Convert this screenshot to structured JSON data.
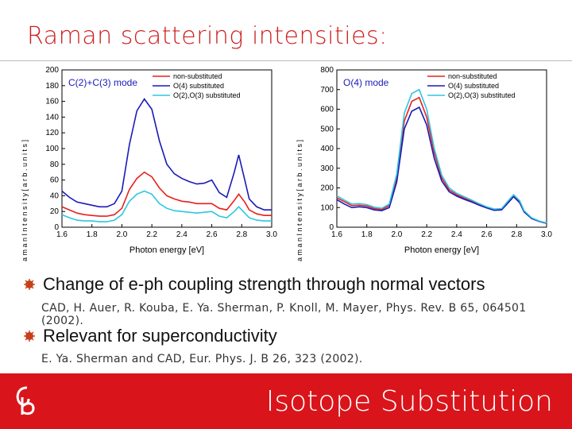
{
  "slide": {
    "title": "Raman scattering intensities:",
    "bullets": [
      {
        "text": "Change of e-ph coupling strength through normal vectors",
        "ref": "CAD, H. Auer, R. Kouba, E. Ya. Sherman, P. Knoll, M. Mayer, Phys. Rev. B 65, 064501 (2002)."
      },
      {
        "text": "Relevant for superconductivity",
        "ref": "E. Ya. Sherman and CAD, Eur. Phys. J. B 26, 323 (2002)."
      }
    ],
    "footer_title": "Isotope Substitution",
    "colors": {
      "accent": "#d9151b",
      "title": "#cc1f1f",
      "bullet": "#c8401a"
    }
  },
  "chart_data": [
    {
      "type": "line",
      "annotation": "C(2)+C(3) mode",
      "xlabel": "Photon energy [eV]",
      "ylabel": "R a m a n   I n t e n s i t y   [ a r b .   u n i t s ]",
      "xlim": [
        1.6,
        3.0
      ],
      "ylim": [
        0,
        200
      ],
      "xticks": [
        "1.6",
        "1.8",
        "2.0",
        "2.2",
        "2.4",
        "2.6",
        "2.8",
        "3.0"
      ],
      "yticks": [
        "0",
        "20",
        "40",
        "60",
        "80",
        "100",
        "120",
        "140",
        "160",
        "180",
        "200"
      ],
      "legend": "top-right",
      "series": [
        {
          "name": "non-substituted",
          "color": "#e8201c",
          "x": [
            1.6,
            1.65,
            1.7,
            1.75,
            1.8,
            1.85,
            1.9,
            1.95,
            2.0,
            2.05,
            2.1,
            2.15,
            2.2,
            2.25,
            2.3,
            2.35,
            2.4,
            2.45,
            2.5,
            2.55,
            2.6,
            2.65,
            2.7,
            2.75,
            2.78,
            2.82,
            2.85,
            2.9,
            2.95,
            3.0
          ],
          "values": [
            26,
            22,
            18,
            16,
            15,
            14,
            14,
            16,
            24,
            48,
            62,
            70,
            64,
            50,
            40,
            36,
            33,
            32,
            30,
            30,
            30,
            24,
            22,
            34,
            42,
            32,
            22,
            17,
            15,
            15
          ]
        },
        {
          "name": "O(4) substituted",
          "color": "#1a1ab8",
          "x": [
            1.6,
            1.65,
            1.7,
            1.75,
            1.8,
            1.85,
            1.9,
            1.95,
            2.0,
            2.05,
            2.1,
            2.15,
            2.2,
            2.25,
            2.3,
            2.35,
            2.4,
            2.45,
            2.5,
            2.55,
            2.6,
            2.65,
            2.7,
            2.75,
            2.78,
            2.82,
            2.85,
            2.9,
            2.95,
            3.0
          ],
          "values": [
            46,
            38,
            32,
            30,
            28,
            26,
            26,
            30,
            46,
            105,
            148,
            163,
            150,
            110,
            80,
            68,
            62,
            58,
            55,
            56,
            60,
            44,
            38,
            70,
            92,
            60,
            36,
            26,
            22,
            22
          ]
        },
        {
          "name": "O(2),O(3) substituted",
          "color": "#2ec6e0",
          "x": [
            1.6,
            1.65,
            1.7,
            1.75,
            1.8,
            1.85,
            1.9,
            1.95,
            2.0,
            2.05,
            2.1,
            2.15,
            2.2,
            2.25,
            2.3,
            2.35,
            2.4,
            2.45,
            2.5,
            2.55,
            2.6,
            2.65,
            2.7,
            2.75,
            2.78,
            2.82,
            2.85,
            2.9,
            2.95,
            3.0
          ],
          "values": [
            16,
            12,
            9,
            8,
            8,
            7,
            7,
            9,
            16,
            33,
            42,
            46,
            42,
            30,
            24,
            21,
            20,
            19,
            18,
            19,
            20,
            14,
            12,
            20,
            26,
            18,
            12,
            9,
            8,
            8
          ]
        }
      ]
    },
    {
      "type": "line",
      "annotation": "O(4) mode",
      "xlabel": "Photon energy [eV]",
      "ylabel": "R a m a n   I n t e n s i t y   [ a r b .   u n i t s ]",
      "xlim": [
        1.6,
        3.0
      ],
      "ylim": [
        0,
        800
      ],
      "xticks": [
        "1.6",
        "1.8",
        "2.0",
        "2.2",
        "2.4",
        "2.6",
        "2.8",
        "3.0"
      ],
      "yticks": [
        "0",
        "100",
        "200",
        "300",
        "400",
        "500",
        "600",
        "700",
        "800"
      ],
      "legend": "top-right",
      "series": [
        {
          "name": "non-substituted",
          "color": "#e8201c",
          "x": [
            1.6,
            1.65,
            1.7,
            1.75,
            1.8,
            1.85,
            1.9,
            1.95,
            2.0,
            2.05,
            2.1,
            2.15,
            2.2,
            2.25,
            2.3,
            2.35,
            2.4,
            2.45,
            2.5,
            2.55,
            2.6,
            2.65,
            2.7,
            2.75,
            2.78,
            2.82,
            2.85,
            2.9,
            2.95,
            3.0
          ],
          "values": [
            150,
            130,
            110,
            112,
            108,
            95,
            90,
            110,
            250,
            540,
            640,
            660,
            560,
            380,
            250,
            190,
            165,
            148,
            132,
            115,
            100,
            88,
            90,
            135,
            160,
            130,
            80,
            45,
            30,
            20
          ]
        },
        {
          "name": "O(4) substituted",
          "color": "#1a1ab8",
          "x": [
            1.6,
            1.65,
            1.7,
            1.75,
            1.8,
            1.85,
            1.9,
            1.95,
            2.0,
            2.05,
            2.1,
            2.15,
            2.2,
            2.25,
            2.3,
            2.35,
            2.4,
            2.45,
            2.5,
            2.55,
            2.6,
            2.65,
            2.7,
            2.75,
            2.78,
            2.82,
            2.85,
            2.9,
            2.95,
            3.0
          ],
          "values": [
            140,
            118,
            100,
            104,
            100,
            88,
            84,
            100,
            230,
            500,
            590,
            610,
            520,
            350,
            235,
            180,
            158,
            142,
            128,
            112,
            98,
            86,
            88,
            130,
            155,
            125,
            78,
            44,
            30,
            20
          ]
        },
        {
          "name": "O(2),O(3) substituted",
          "color": "#2ec6e0",
          "x": [
            1.6,
            1.65,
            1.7,
            1.75,
            1.8,
            1.85,
            1.9,
            1.95,
            2.0,
            2.05,
            2.1,
            2.15,
            2.2,
            2.25,
            2.3,
            2.35,
            2.4,
            2.45,
            2.5,
            2.55,
            2.6,
            2.65,
            2.7,
            2.75,
            2.78,
            2.82,
            2.85,
            2.9,
            2.95,
            3.0
          ],
          "values": [
            160,
            138,
            118,
            120,
            115,
            102,
            96,
            118,
            270,
            580,
            680,
            700,
            600,
            400,
            265,
            200,
            172,
            155,
            138,
            120,
            104,
            92,
            95,
            140,
            165,
            135,
            84,
            48,
            32,
            22
          ]
        }
      ]
    }
  ]
}
